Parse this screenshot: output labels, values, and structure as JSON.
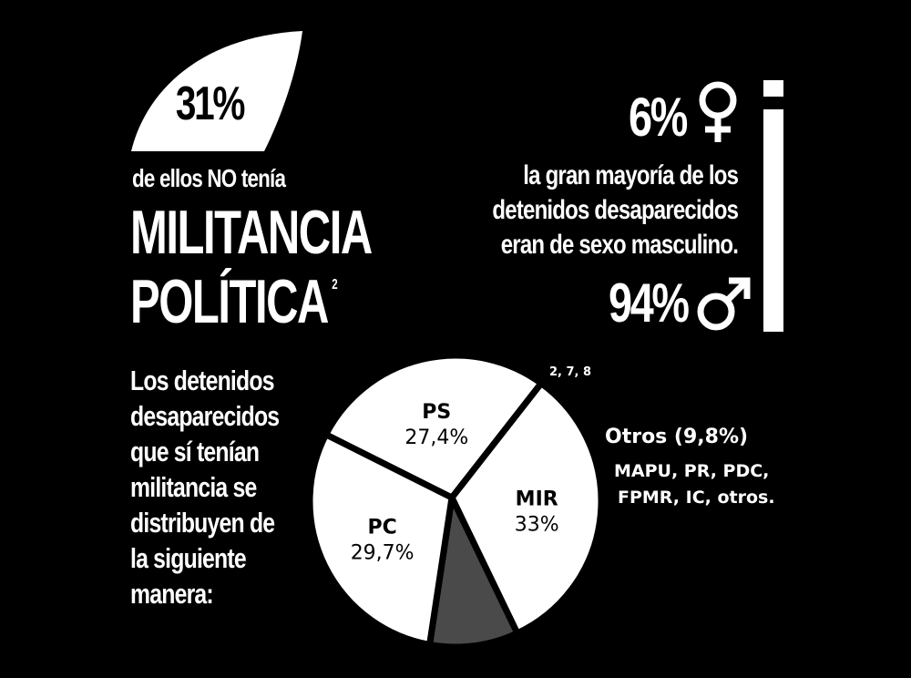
{
  "militancy": {
    "no_militancy_pct": "31%",
    "intro": "de ellos NO tenía",
    "heading_line1": "MILITANCIA",
    "heading_line2": "POLÍTICA",
    "footnote": "2",
    "no_militancy_share": 31
  },
  "gender": {
    "female_pct": "6%",
    "male_pct": "94%",
    "female_icon": "female-symbol-icon",
    "male_icon": "male-symbol-icon",
    "text_lines": [
      "la gran mayoría de los",
      "detenidos desaparecidos",
      "eran de sexo masculino."
    ]
  },
  "description_lines": [
    "Los detenidos",
    "desaparecidos",
    "que sí tenían",
    "militancia se",
    "distribuyen de",
    "la siguiente",
    "manera:"
  ],
  "chart_data": {
    "type": "pie",
    "references": "2, 7, 8",
    "slices": [
      {
        "label": "MIR",
        "value": 33,
        "value_label": "33%",
        "color": "#ffffff"
      },
      {
        "label": "Otros",
        "value": 9.8,
        "value_label": "Otros (9,8%)",
        "color": "#4a4a4a",
        "detail_lines": [
          "MAPU, PR, PDC,",
          "FPMR, IC, otros."
        ]
      },
      {
        "label": "PC",
        "value": 29.7,
        "value_label": "29,7%",
        "color": "#ffffff"
      },
      {
        "label": "PS",
        "value": 27.4,
        "value_label": "27,4%",
        "color": "#ffffff"
      }
    ]
  },
  "colors": {
    "background": "#000000",
    "foreground": "#ffffff",
    "otros": "#4a4a4a"
  }
}
